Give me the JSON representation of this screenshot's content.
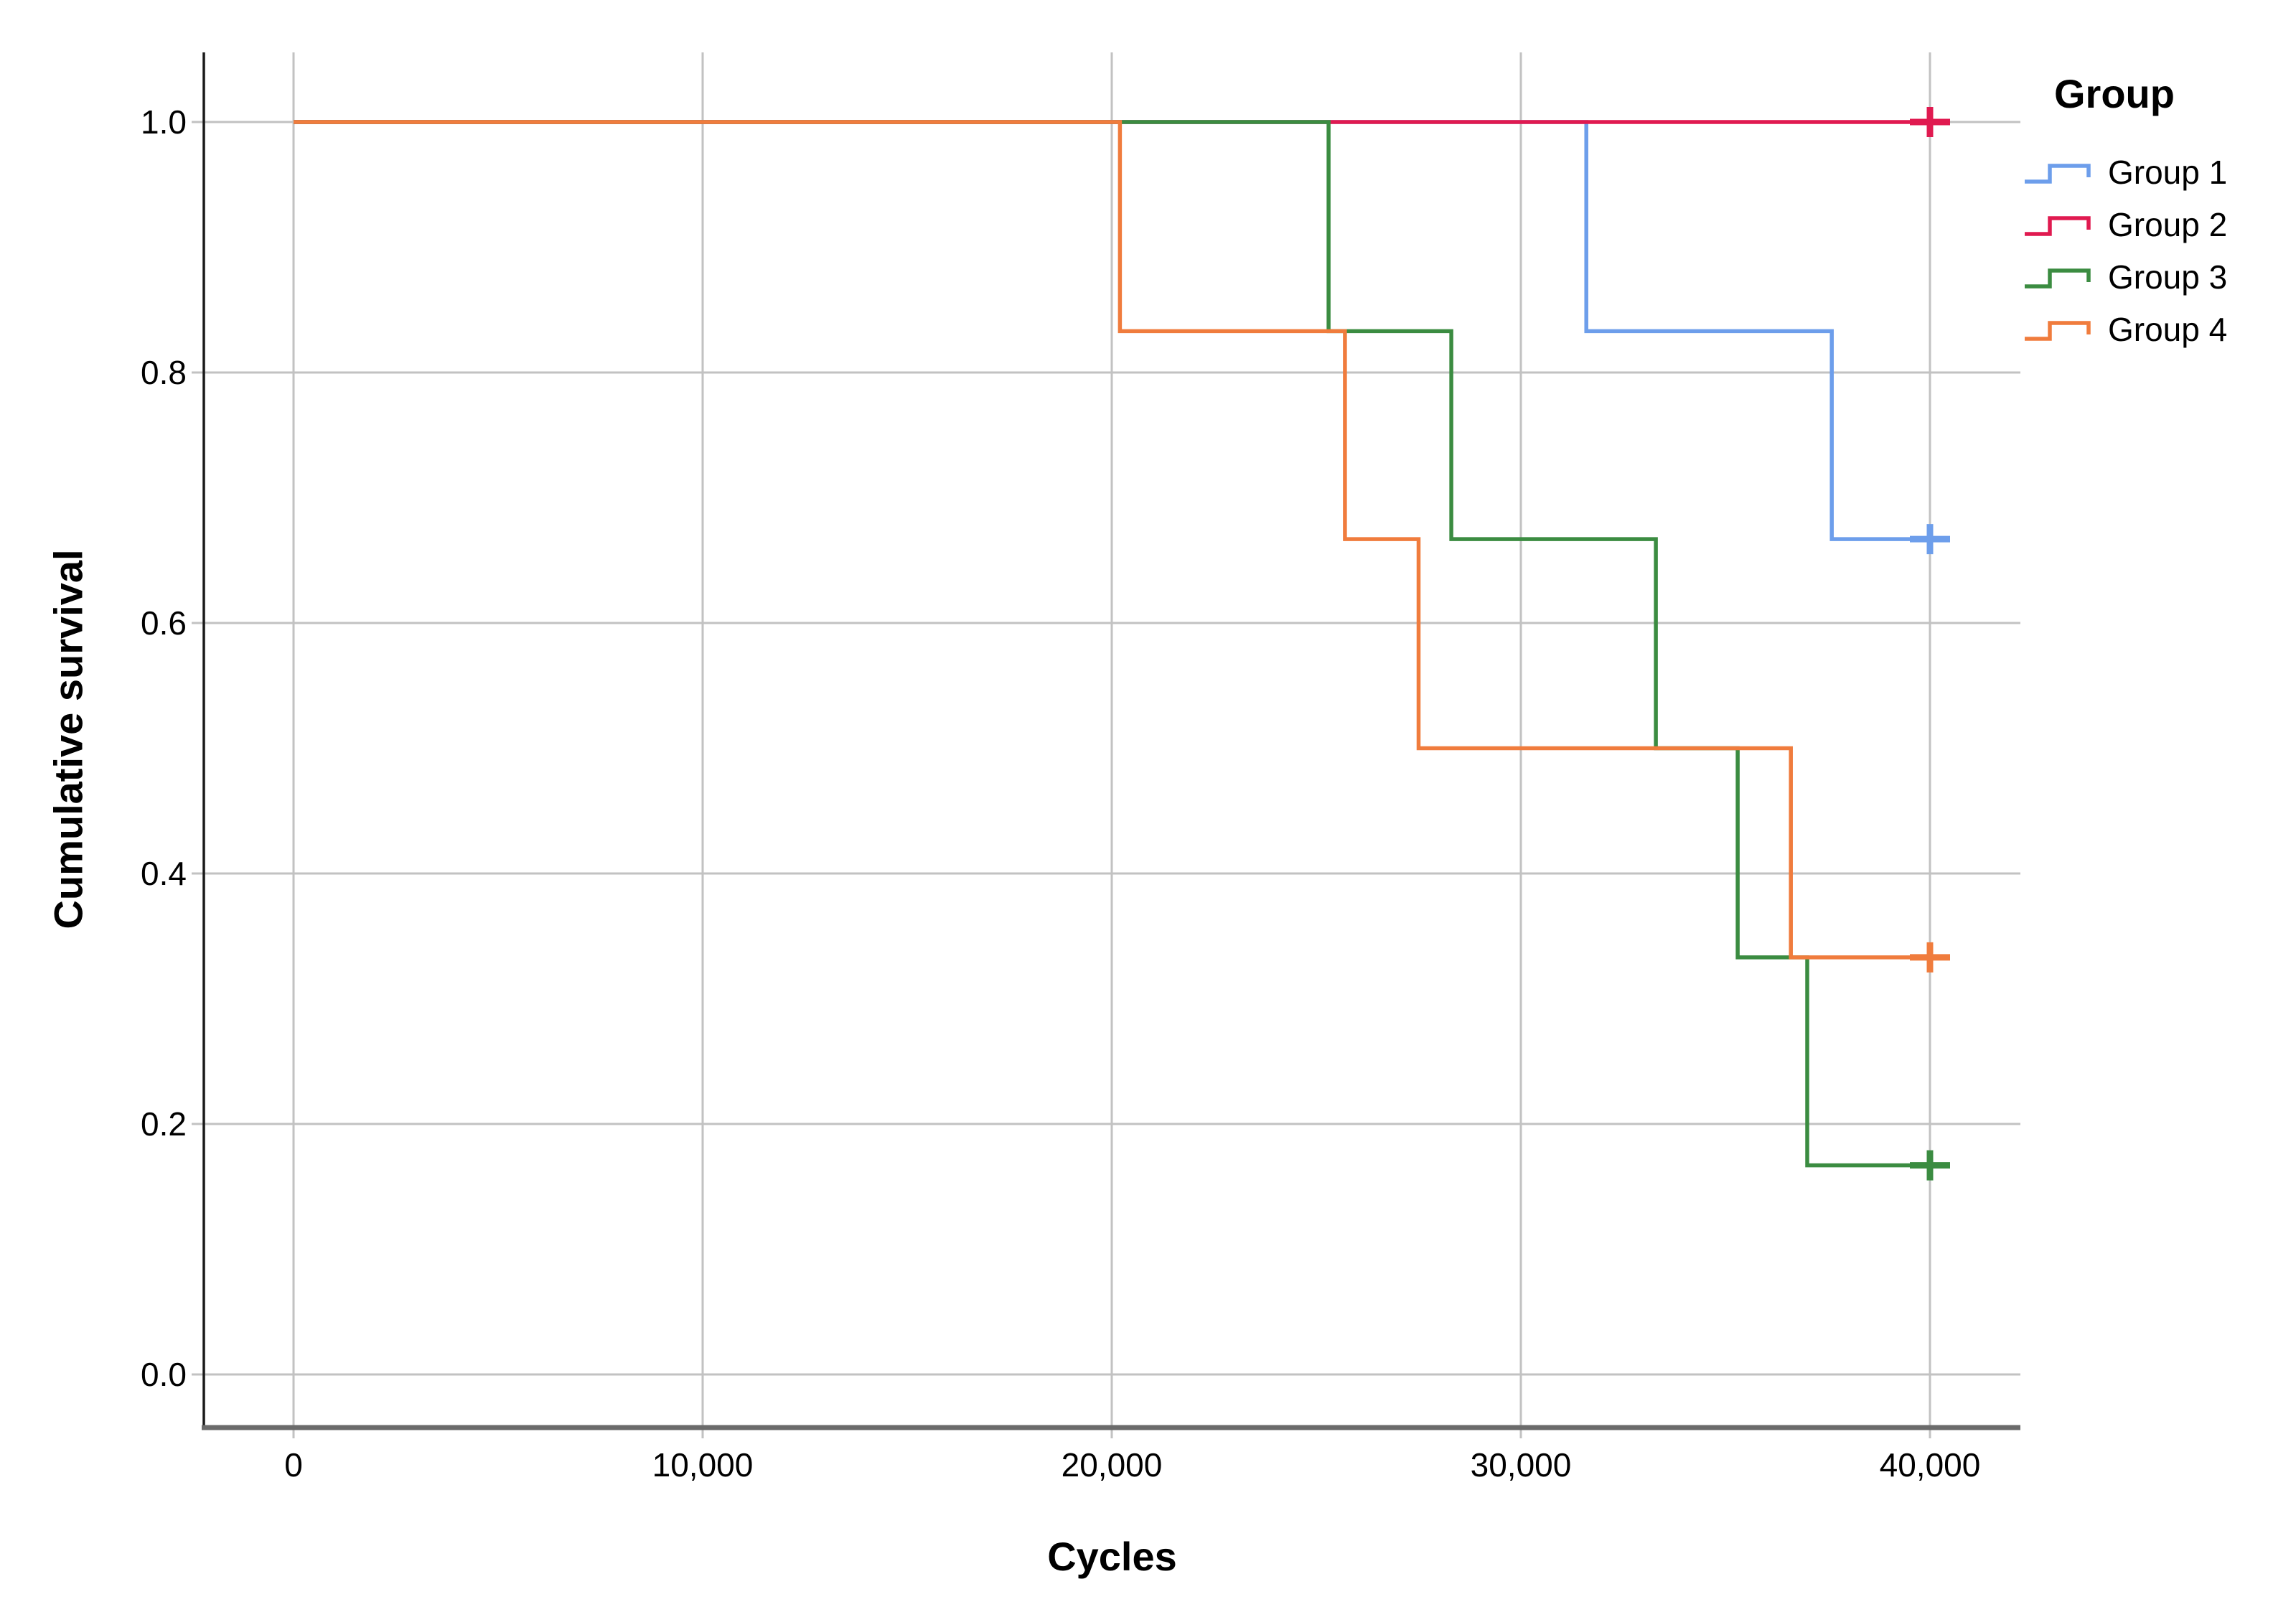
{
  "chart_data": {
    "type": "line",
    "subtype": "kaplan_meier_step_survival",
    "title": "",
    "xlabel": "Cycles",
    "ylabel": "Cumulative survival",
    "legend_title": "Group",
    "legend_position": "top-right",
    "grid": true,
    "xlim": [
      -2200,
      42200
    ],
    "ylim": [
      -0.04,
      1.06
    ],
    "x_ticks": {
      "values": [
        0,
        10000,
        20000,
        30000,
        40000
      ],
      "labels": [
        "0",
        "10,000",
        "20,000",
        "30,000",
        "40,000"
      ]
    },
    "y_ticks": {
      "values": [
        0.0,
        0.2,
        0.4,
        0.6,
        0.8,
        1.0
      ],
      "labels": [
        "0.0",
        "0.2",
        "0.4",
        "0.6",
        "0.8",
        "1.0"
      ]
    },
    "end_x": 40000,
    "series": [
      {
        "name": "Group 1",
        "color": "#6D9EEB",
        "steps": [
          [
            0,
            1.0
          ],
          [
            31600,
            0.833
          ],
          [
            37600,
            0.667
          ]
        ],
        "censors": [
          [
            40000,
            0.667
          ]
        ]
      },
      {
        "name": "Group 2",
        "color": "#E01A50",
        "steps": [
          [
            0,
            1.0
          ]
        ],
        "censors": [
          [
            40000,
            1.0
          ]
        ]
      },
      {
        "name": "Group 3",
        "color": "#3B8C41",
        "steps": [
          [
            0,
            1.0
          ],
          [
            25300,
            0.833
          ],
          [
            28300,
            0.667
          ],
          [
            33300,
            0.5
          ],
          [
            35300,
            0.333
          ],
          [
            37000,
            0.167
          ]
        ],
        "censors": [
          [
            40000,
            0.167
          ]
        ]
      },
      {
        "name": "Group 4",
        "color": "#F07C3D",
        "steps": [
          [
            0,
            1.0
          ],
          [
            20200,
            0.833
          ],
          [
            25700,
            0.667
          ],
          [
            27500,
            0.5
          ],
          [
            36600,
            0.333
          ]
        ],
        "censors": [
          [
            40000,
            0.333
          ]
        ]
      }
    ]
  },
  "styles": {
    "grid_color": "#C2C2C2",
    "y_axis_color": "#1A1A1A",
    "x_axis_color": "#6B6B6B",
    "text_color": "#000000"
  }
}
